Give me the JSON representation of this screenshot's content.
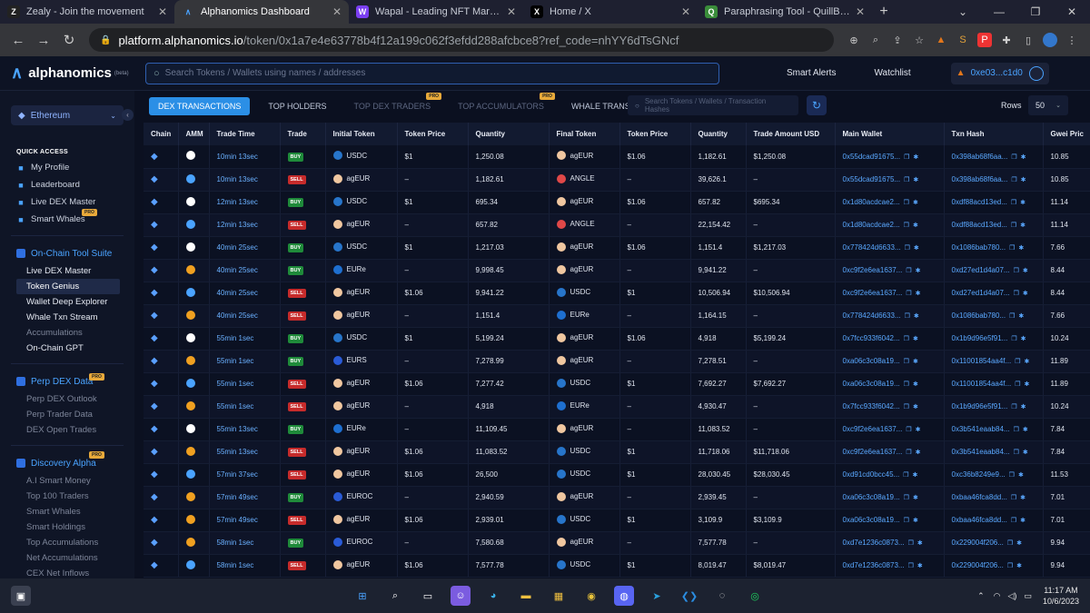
{
  "browser": {
    "tabs": [
      {
        "title": "Zealy - Join the movement",
        "icon": "Z",
        "color": "#fff",
        "bg": "#222"
      },
      {
        "title": "Alphanomics Dashboard",
        "icon": "∧",
        "color": "#4aa3ff",
        "bg": "transparent",
        "active": true
      },
      {
        "title": "Wapal - Leading NFT Marketplace",
        "icon": "W",
        "color": "#fff",
        "bg": "#7b3ff2"
      },
      {
        "title": "Home / X",
        "icon": "X",
        "color": "#fff",
        "bg": "#000"
      },
      {
        "title": "Paraphrasing Tool - QuillBot AI",
        "icon": "Q",
        "color": "#fff",
        "bg": "#3a8d3a"
      }
    ],
    "url_host": "platform.alphanomics.io",
    "url_path": "/token/0x1a7e4e63778b4f12a199c062f3efdd288afcbce8?ref_code=nhYY6dTsGNcf"
  },
  "app": {
    "logo": "alphanomics",
    "beta": "(beta)",
    "search_placeholder": "Search Tokens / Wallets using names / addresses",
    "smart_alerts": "Smart Alerts",
    "watchlist": "Watchlist",
    "wallet": "0xe03...c1d0"
  },
  "sidebar": {
    "chain": "Ethereum",
    "quick_access": "QUICK ACCESS",
    "quick": [
      "My Profile",
      "Leaderboard",
      "Live DEX Master",
      "Smart Whales"
    ],
    "tool_suite": "On-Chain Tool Suite",
    "tools": [
      "Live DEX Master",
      "Token Genius",
      "Wallet Deep Explorer",
      "Whale Txn Stream",
      "Accumulations",
      "On-Chain GPT"
    ],
    "perp": "Perp DEX Data",
    "perp_items": [
      "Perp DEX Outlook",
      "Perp Trader Data",
      "DEX Open Trades"
    ],
    "discovery": "Discovery Alpha",
    "disc_items": [
      "A.I Smart Money",
      "Top 100 Traders",
      "Smart Whales",
      "Smart Holdings",
      "Top Accumulations",
      "Net Accumulations",
      "CEX Net Inflows"
    ],
    "pro": "PRO"
  },
  "tabs": [
    "DEX TRANSACTIONS",
    "TOP HOLDERS",
    "TOP DEX TRADERS",
    "TOP ACCUMULATORS",
    "WHALE TRANSACTIONS"
  ],
  "tab_search": "Search Tokens / Wallets / Transaction Hashes",
  "rows_label": "Rows",
  "rows_value": "50",
  "columns": [
    "Chain",
    "AMM",
    "Trade Time",
    "Trade",
    "Initial Token",
    "Token Price",
    "Quantity",
    "Final Token",
    "Token Price",
    "Quantity",
    "Trade Amount USD",
    "Main Wallet",
    "Txn Hash",
    "Gwei Pric"
  ],
  "rows": [
    [
      "10min 13sec",
      "BUY",
      "USDC",
      "$1",
      "1,250.08",
      "agEUR",
      "$1.06",
      "1,182.61",
      "$1,250.08",
      "0x55dcad91675...",
      "0x398ab68f6aa...",
      "10.85"
    ],
    [
      "10min 13sec",
      "SELL",
      "agEUR",
      "–",
      "1,182.61",
      "ANGLE",
      "–",
      "39,626.1",
      "–",
      "0x55dcad91675...",
      "0x398ab68f6aa...",
      "10.85"
    ],
    [
      "12min 13sec",
      "BUY",
      "USDC",
      "$1",
      "695.34",
      "agEUR",
      "$1.06",
      "657.82",
      "$695.34",
      "0x1d80acdcae2...",
      "0xdf88acd13ed...",
      "11.14"
    ],
    [
      "12min 13sec",
      "SELL",
      "agEUR",
      "–",
      "657.82",
      "ANGLE",
      "–",
      "22,154.42",
      "–",
      "0x1d80acdcae2...",
      "0xdf88acd13ed...",
      "11.14"
    ],
    [
      "40min 25sec",
      "BUY",
      "USDC",
      "$1",
      "1,217.03",
      "agEUR",
      "$1.06",
      "1,151.4",
      "$1,217.03",
      "0x778424d6633...",
      "0x1086bab780...",
      "7.66"
    ],
    [
      "40min 25sec",
      "BUY",
      "EURe",
      "–",
      "9,998.45",
      "agEUR",
      "–",
      "9,941.22",
      "–",
      "0xc9f2e6ea1637...",
      "0xd27ed1d4a07...",
      "8.44"
    ],
    [
      "40min 25sec",
      "SELL",
      "agEUR",
      "$1.06",
      "9,941.22",
      "USDC",
      "$1",
      "10,506.94",
      "$10,506.94",
      "0xc9f2e6ea1637...",
      "0xd27ed1d4a07...",
      "8.44"
    ],
    [
      "40min 25sec",
      "SELL",
      "agEUR",
      "–",
      "1,151.4",
      "EURe",
      "–",
      "1,164.15",
      "–",
      "0x778424d6633...",
      "0x1086bab780...",
      "7.66"
    ],
    [
      "55min 1sec",
      "BUY",
      "USDC",
      "$1",
      "5,199.24",
      "agEUR",
      "$1.06",
      "4,918",
      "$5,199.24",
      "0x7fcc933f6042...",
      "0x1b9d96e5f91...",
      "10.24"
    ],
    [
      "55min 1sec",
      "BUY",
      "EURS",
      "–",
      "7,278.99",
      "agEUR",
      "–",
      "7,278.51",
      "–",
      "0xa06c3c08a19...",
      "0x11001854aa4f...",
      "11.89"
    ],
    [
      "55min 1sec",
      "SELL",
      "agEUR",
      "$1.06",
      "7,277.42",
      "USDC",
      "$1",
      "7,692.27",
      "$7,692.27",
      "0xa06c3c08a19...",
      "0x11001854aa4f...",
      "11.89"
    ],
    [
      "55min 1sec",
      "SELL",
      "agEUR",
      "–",
      "4,918",
      "EURe",
      "–",
      "4,930.47",
      "–",
      "0x7fcc933f6042...",
      "0x1b9d96e5f91...",
      "10.24"
    ],
    [
      "55min 13sec",
      "BUY",
      "EURe",
      "–",
      "11,109.45",
      "agEUR",
      "–",
      "11,083.52",
      "–",
      "0xc9f2e6ea1637...",
      "0x3b541eaab84...",
      "7.84"
    ],
    [
      "55min 13sec",
      "SELL",
      "agEUR",
      "$1.06",
      "11,083.52",
      "USDC",
      "$1",
      "11,718.06",
      "$11,718.06",
      "0xc9f2e6ea1637...",
      "0x3b541eaab84...",
      "7.84"
    ],
    [
      "57min 37sec",
      "SELL",
      "agEUR",
      "$1.06",
      "26,500",
      "USDC",
      "$1",
      "28,030.45",
      "$28,030.45",
      "0xd91cd0bcc45...",
      "0xc36b8249e9...",
      "11.53"
    ],
    [
      "57min 49sec",
      "BUY",
      "EUROC",
      "–",
      "2,940.59",
      "agEUR",
      "–",
      "2,939.45",
      "–",
      "0xa06c3c08a19...",
      "0xbaa46fca8dd...",
      "7.01"
    ],
    [
      "57min 49sec",
      "SELL",
      "agEUR",
      "$1.06",
      "2,939.01",
      "USDC",
      "$1",
      "3,109.9",
      "$3,109.9",
      "0xa06c3c08a19...",
      "0xbaa46fca8dd...",
      "7.01"
    ],
    [
      "58min 1sec",
      "BUY",
      "EUROC",
      "–",
      "7,580.68",
      "agEUR",
      "–",
      "7,577.78",
      "–",
      "0xd7e1236c0873...",
      "0x229004f206...",
      "9.94"
    ],
    [
      "58min 1sec",
      "SELL",
      "agEUR",
      "$1.06",
      "7,577.78",
      "USDC",
      "$1",
      "8,019.47",
      "$8,019.47",
      "0xd7e1236c0873...",
      "0x229004f206...",
      "9.94"
    ]
  ],
  "amm_colors": [
    "#fff",
    "#4aa3ff",
    "#fff",
    "#4aa3ff",
    "#fff",
    "#f0a020",
    "#4aa3ff",
    "#f0a020",
    "#fff",
    "#f0a020",
    "#4aa3ff",
    "#f0a020",
    "#fff",
    "#f0a020",
    "#4aa3ff",
    "#f0a020",
    "#f0a020",
    "#f0a020",
    "#4aa3ff"
  ],
  "token_colors": {
    "USDC": "#2775ca",
    "agEUR": "#f0c7a0",
    "ANGLE": "#e04848",
    "EURe": "#1e6fd0",
    "EURS": "#2a5bd7",
    "EUROC": "#2a5bd7"
  },
  "clock": {
    "time": "11:17 AM",
    "date": "10/6/2023"
  }
}
